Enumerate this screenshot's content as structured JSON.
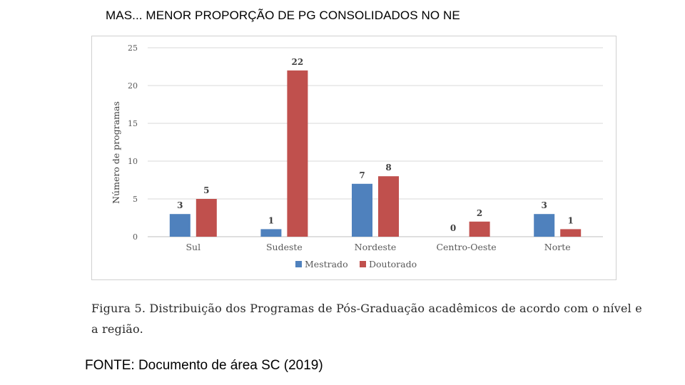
{
  "page": {
    "title": "MAS... MENOR PROPORÇÃO DE PG CONSOLIDADOS NO NE",
    "caption": "Figura 5. Distribuição dos Programas de Pós-Graduação acadêmicos de acordo com o nível e a região.",
    "source": "FONTE: Documento de área SC (2019)"
  },
  "chart_data": {
    "type": "bar",
    "title": "",
    "xlabel": "",
    "ylabel": "Número de programas",
    "categories": [
      "Sul",
      "Sudeste",
      "Nordeste",
      "Centro-Oeste",
      "Norte"
    ],
    "series": [
      {
        "name": "Mestrado",
        "color": "#4f81bd",
        "values": [
          3,
          1,
          7,
          0,
          3
        ]
      },
      {
        "name": "Doutorado",
        "color": "#c0504d",
        "values": [
          5,
          22,
          8,
          2,
          1
        ]
      }
    ],
    "ylim": [
      0,
      25
    ],
    "yticks": [
      0,
      5,
      10,
      15,
      20,
      25
    ],
    "grid": true,
    "legend_position": "bottom",
    "data_labels": true
  }
}
